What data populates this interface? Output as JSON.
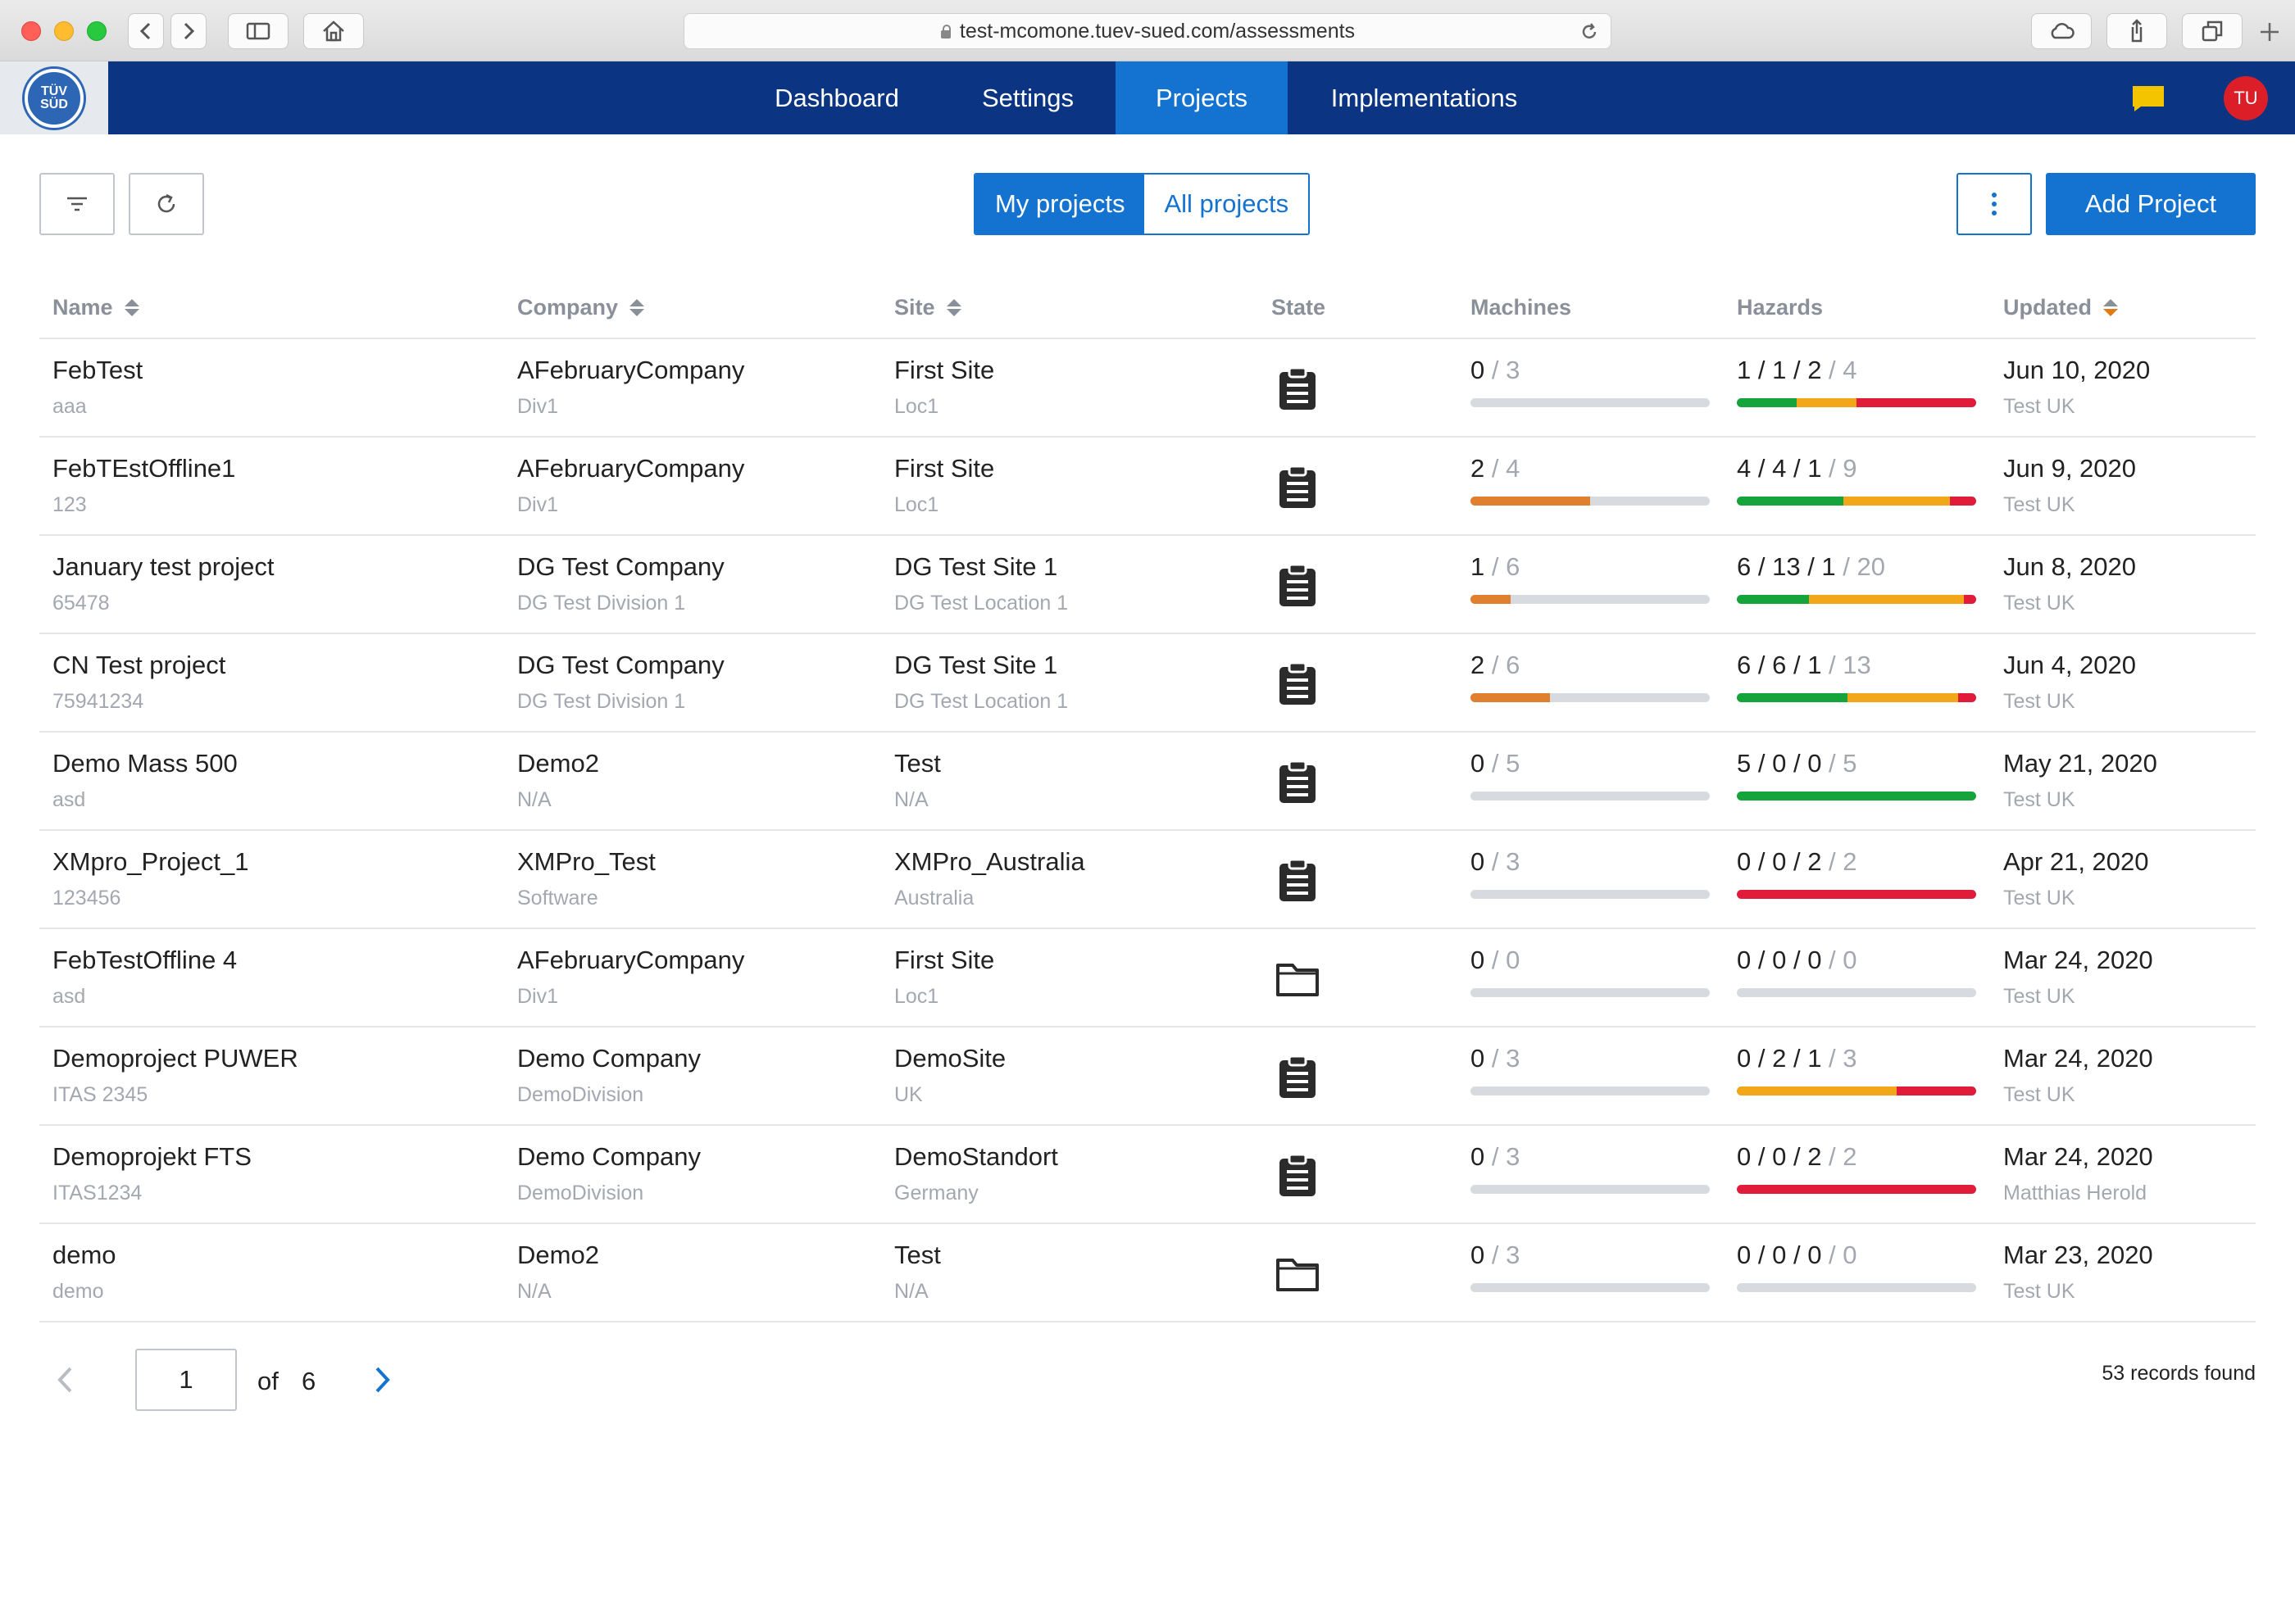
{
  "browser": {
    "url": "test-mcomone.tuev-sued.com/assessments"
  },
  "nav": {
    "logo_text": "TÜV SÜD",
    "items": [
      {
        "label": "Dashboard",
        "active": false
      },
      {
        "label": "Settings",
        "active": false
      },
      {
        "label": "Projects",
        "active": true
      },
      {
        "label": "Implementations",
        "active": false
      }
    ],
    "avatar_initials": "TU"
  },
  "toolbar": {
    "segment": [
      {
        "label": "My projects",
        "active": true
      },
      {
        "label": "All projects",
        "active": false
      }
    ],
    "add_label": "Add Project"
  },
  "columns": [
    "Name",
    "Company",
    "Site",
    "State",
    "Machines",
    "Hazards",
    "Updated"
  ],
  "colors": {
    "primary": "#1473d1",
    "nav": "#0b3582",
    "machine_bar": "#e07f2e",
    "hazard_green": "#15a33c",
    "hazard_orange": "#f2a61a",
    "hazard_red": "#e11b3a"
  },
  "rows": [
    {
      "name": "FebTest",
      "code": "aaa",
      "company": "AFebruaryCompany",
      "division": "Div1",
      "site": "First Site",
      "location": "Loc1",
      "state_icon": "clipboard-icon",
      "machines": {
        "done": "0",
        "total": "3"
      },
      "hazards": {
        "green": 1,
        "orange": 1,
        "red": 2,
        "total": 4
      },
      "updated": "Jun 10, 2020",
      "updated_by": "Test UK"
    },
    {
      "name": "FebTEstOffline1",
      "code": "123",
      "company": "AFebruaryCompany",
      "division": "Div1",
      "site": "First Site",
      "location": "Loc1",
      "state_icon": "clipboard-icon",
      "machines": {
        "done": "2",
        "total": "4"
      },
      "hazards": {
        "green": 4,
        "orange": 4,
        "red": 1,
        "total": 9
      },
      "updated": "Jun 9, 2020",
      "updated_by": "Test UK"
    },
    {
      "name": "January test project",
      "code": "65478",
      "company": "DG Test Company",
      "division": "DG Test Division 1",
      "site": "DG Test Site 1",
      "location": "DG Test Location 1",
      "state_icon": "clipboard-icon",
      "machines": {
        "done": "1",
        "total": "6"
      },
      "hazards": {
        "green": 6,
        "orange": 13,
        "red": 1,
        "total": 20
      },
      "updated": "Jun 8, 2020",
      "updated_by": "Test UK"
    },
    {
      "name": "CN Test project",
      "code": "75941234",
      "company": "DG Test Company",
      "division": "DG Test Division 1",
      "site": "DG Test Site 1",
      "location": "DG Test Location 1",
      "state_icon": "clipboard-icon",
      "machines": {
        "done": "2",
        "total": "6"
      },
      "hazards": {
        "green": 6,
        "orange": 6,
        "red": 1,
        "total": 13
      },
      "updated": "Jun 4, 2020",
      "updated_by": "Test UK"
    },
    {
      "name": "Demo Mass 500",
      "code": "asd",
      "company": "Demo2",
      "division": "N/A",
      "site": "Test",
      "location": "N/A",
      "state_icon": "clipboard-icon",
      "machines": {
        "done": "0",
        "total": "5"
      },
      "hazards": {
        "green": 5,
        "orange": 0,
        "red": 0,
        "total": 5
      },
      "updated": "May 21, 2020",
      "updated_by": "Test UK"
    },
    {
      "name": "XMpro_Project_1",
      "code": "123456",
      "company": "XMPro_Test",
      "division": "Software",
      "site": "XMPro_Australia",
      "location": "Australia",
      "state_icon": "clipboard-icon",
      "machines": {
        "done": "0",
        "total": "3"
      },
      "hazards": {
        "green": 0,
        "orange": 0,
        "red": 2,
        "total": 2
      },
      "updated": "Apr 21, 2020",
      "updated_by": "Test UK"
    },
    {
      "name": "FebTestOffline 4",
      "code": "asd",
      "company": "AFebruaryCompany",
      "division": "Div1",
      "site": "First Site",
      "location": "Loc1",
      "state_icon": "folder-icon",
      "machines": {
        "done": "0",
        "total": "0"
      },
      "hazards": {
        "green": 0,
        "orange": 0,
        "red": 0,
        "total": 0
      },
      "updated": "Mar 24, 2020",
      "updated_by": "Test UK"
    },
    {
      "name": "Demoproject PUWER",
      "code": "ITAS 2345",
      "company": "Demo Company",
      "division": "DemoDivision",
      "site": "DemoSite",
      "location": "UK",
      "state_icon": "clipboard-icon",
      "machines": {
        "done": "0",
        "total": "3"
      },
      "hazards": {
        "green": 0,
        "orange": 2,
        "red": 1,
        "total": 3
      },
      "updated": "Mar 24, 2020",
      "updated_by": "Test UK"
    },
    {
      "name": "Demoprojekt FTS",
      "code": "ITAS1234",
      "company": "Demo Company",
      "division": "DemoDivision",
      "site": "DemoStandort",
      "location": "Germany",
      "state_icon": "clipboard-icon",
      "machines": {
        "done": "0",
        "total": "3"
      },
      "hazards": {
        "green": 0,
        "orange": 0,
        "red": 2,
        "total": 2
      },
      "updated": "Mar 24, 2020",
      "updated_by": "Matthias Herold"
    },
    {
      "name": "demo",
      "code": "demo",
      "company": "Demo2",
      "division": "N/A",
      "site": "Test",
      "location": "N/A",
      "state_icon": "folder-icon",
      "machines": {
        "done": "0",
        "total": "3"
      },
      "hazards": {
        "green": 0,
        "orange": 0,
        "red": 0,
        "total": 0
      },
      "updated": "Mar 23, 2020",
      "updated_by": "Test UK"
    }
  ],
  "pagination": {
    "page": "1",
    "of_label": "of",
    "total_pages": "6",
    "records": "53 records found"
  }
}
